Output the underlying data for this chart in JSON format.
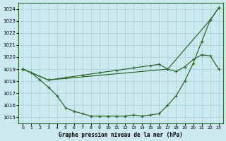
{
  "xlabel": "Graphe pression niveau de la mer (hPa)",
  "xlim": [
    -0.5,
    23.5
  ],
  "ylim": [
    1014.5,
    1024.5
  ],
  "yticks": [
    1015,
    1016,
    1017,
    1018,
    1019,
    1020,
    1021,
    1022,
    1023,
    1024
  ],
  "xticks": [
    0,
    1,
    2,
    3,
    4,
    5,
    6,
    7,
    8,
    9,
    10,
    11,
    12,
    13,
    14,
    15,
    16,
    17,
    18,
    19,
    20,
    21,
    22,
    23
  ],
  "bg_color": "#cce9f0",
  "grid_color": "#a8d4dc",
  "line_color": "#2d6a2d",
  "series1_x": [
    0,
    1,
    2,
    3,
    4,
    5,
    6,
    7,
    8,
    9,
    10,
    11,
    12,
    13,
    14,
    15,
    16,
    17,
    18,
    19,
    20,
    21,
    22,
    23
  ],
  "series1_y": [
    1019.0,
    1018.7,
    1018.1,
    1017.5,
    1016.8,
    1015.8,
    1015.5,
    1015.3,
    1015.1,
    1015.1,
    1015.1,
    1015.1,
    1015.1,
    1015.2,
    1015.1,
    1015.2,
    1015.3,
    1016.0,
    1016.8,
    1018.0,
    1019.5,
    1021.3,
    1023.1,
    1024.1
  ],
  "series2_x": [
    0,
    3,
    17,
    22,
    23
  ],
  "series2_y": [
    1019.0,
    1018.1,
    1019.0,
    1023.1,
    1024.1
  ],
  "series3_x": [
    0,
    3,
    5,
    7,
    9,
    11,
    13,
    15,
    16,
    17,
    18,
    19,
    20,
    21,
    22,
    23
  ],
  "series3_y": [
    1019.0,
    1018.1,
    1018.3,
    1018.5,
    1018.7,
    1018.9,
    1019.1,
    1019.3,
    1019.4,
    1019.0,
    1018.8,
    1019.2,
    1019.8,
    1020.2,
    1020.1,
    1019.0
  ]
}
